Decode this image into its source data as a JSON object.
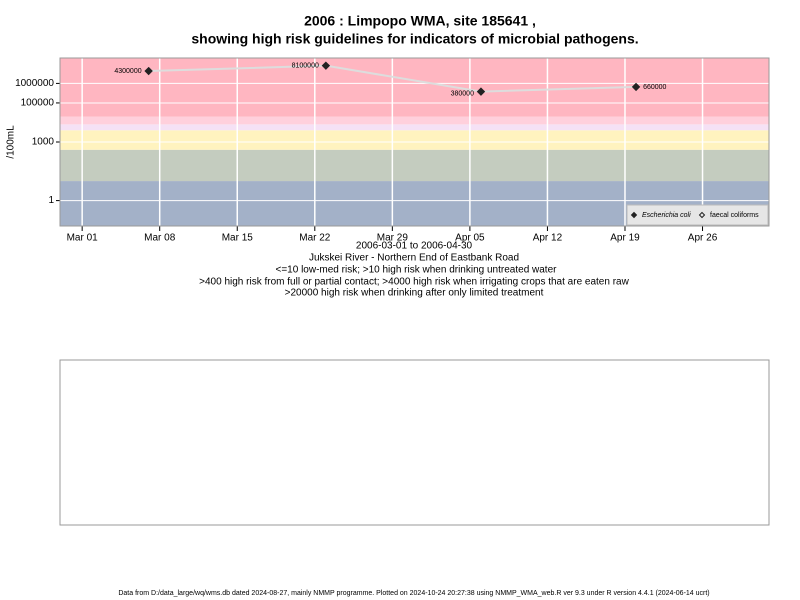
{
  "chart_data": {
    "type": "line",
    "title": "2006 : Limpopo WMA, site 185641 ,",
    "subtitle": "showing high risk guidelines for indicators of microbial pathogens.",
    "ylabel": "/100mL",
    "date_range": "2006-03-01 to 2006-04-30",
    "site_name": "Jukskei River - Northern End of Eastbank Road",
    "notes": [
      "<=10 low-med risk; >10 high risk when drinking untreated water",
      ">400 high risk from full or partial contact; >4000 high risk when irrigating crops that are eaten raw",
      ">20000 high risk when drinking after only limited treatment"
    ],
    "x": [
      "2006-03-07",
      "2006-03-23",
      "2006-04-06",
      "2006-04-20"
    ],
    "series": [
      {
        "name": "Escherichia coli",
        "color": "#222222",
        "line_color": "#dddddd",
        "marker": "filled-diamond",
        "values": [
          4300000,
          8100000,
          380000,
          660000
        ]
      },
      {
        "name": "faecal coliforms",
        "color": "#222222",
        "marker": "open-diamond",
        "values": [
          null,
          null,
          null,
          null
        ]
      }
    ],
    "xlim": [
      "2006-02-27",
      "2006-05-02"
    ],
    "xticks": [
      {
        "value": "2006-03-01",
        "label": "Mar 01"
      },
      {
        "value": "2006-03-08",
        "label": "Mar 08"
      },
      {
        "value": "2006-03-15",
        "label": "Mar 15"
      },
      {
        "value": "2006-03-22",
        "label": "Mar 22"
      },
      {
        "value": "2006-03-29",
        "label": "Mar 29"
      },
      {
        "value": "2006-04-05",
        "label": "Apr 05"
      },
      {
        "value": "2006-04-12",
        "label": "Apr 12"
      },
      {
        "value": "2006-04-19",
        "label": "Apr 19"
      },
      {
        "value": "2006-04-26",
        "label": "Apr 26"
      }
    ],
    "ylim": [
      0.05,
      20000000
    ],
    "yticks": [
      1,
      1000,
      100000,
      1000000
    ],
    "log_y": true,
    "grid": true,
    "legend": "lower right",
    "bands": [
      {
        "to": 10,
        "color": "#a3b1c8"
      },
      {
        "to": 400,
        "color": "#c4ccbf"
      },
      {
        "to": 4000,
        "color": "#fff3bf"
      },
      {
        "to": 8000,
        "color": "#f5e1f5"
      },
      {
        "to": 20000,
        "color": "#ffd0dc"
      },
      {
        "to": 20000000,
        "color": "#ffb6c1"
      }
    ]
  },
  "footer": "Data from D:/data_large/wq/wms.db dated 2024-08-27, mainly NMMP programme. Plotted on 2024-10-24 20:27:38 using NMMP_WMA_web.R ver 9.3 under R version 4.4.1 (2024-06-14 ucrt)"
}
